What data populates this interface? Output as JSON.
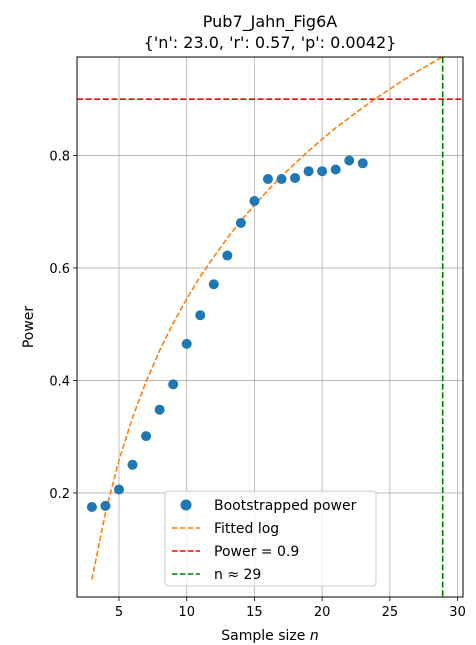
{
  "chart_data": {
    "type": "scatter",
    "title": "Pub7_Jahn_Fig6A",
    "subtitle": "{'n': 23.0, 'r': 0.57, 'p': 0.0042}",
    "xlabel": "Sample size",
    "xlabel_var": "n",
    "ylabel": "Power",
    "xlim": [
      1.9,
      30.4
    ],
    "ylim": [
      0.015,
      0.975
    ],
    "xticks": [
      5,
      10,
      15,
      20,
      25,
      30
    ],
    "yticks": [
      0.2,
      0.4,
      0.6,
      0.8
    ],
    "ytick_labels": [
      "0.2",
      "0.4",
      "0.6",
      "0.8"
    ],
    "grid": true,
    "legend_position": "lower-center",
    "series": [
      {
        "name": "Bootstrapped power",
        "kind": "scatter",
        "color": "#1f77b4",
        "x": [
          3,
          4,
          5,
          6,
          7,
          8,
          9,
          10,
          11,
          12,
          13,
          14,
          15,
          16,
          17,
          18,
          19,
          20,
          21,
          22,
          23
        ],
        "y": [
          0.175,
          0.177,
          0.206,
          0.25,
          0.301,
          0.348,
          0.393,
          0.465,
          0.516,
          0.571,
          0.622,
          0.68,
          0.719,
          0.758,
          0.758,
          0.76,
          0.772,
          0.772,
          0.775,
          0.791,
          0.786
        ]
      },
      {
        "name": "Fitted log",
        "kind": "curve",
        "color": "#ff7f0e",
        "x": [
          3,
          4,
          5,
          6,
          7,
          8,
          9,
          10,
          11,
          12,
          13,
          14,
          15,
          16,
          17,
          18,
          19,
          20,
          21,
          22,
          23,
          24,
          25,
          26,
          27,
          28,
          29
        ],
        "y": [
          0.046,
          0.165,
          0.258,
          0.334,
          0.398,
          0.453,
          0.502,
          0.545,
          0.585,
          0.62,
          0.653,
          0.684,
          0.712,
          0.738,
          0.763,
          0.786,
          0.808,
          0.829,
          0.849,
          0.867,
          0.885,
          0.902,
          0.918,
          0.934,
          0.949,
          0.963,
          0.977
        ]
      },
      {
        "name": "Power = 0.9",
        "kind": "hline",
        "color": "#ff0000",
        "y": 0.9
      },
      {
        "name": "n ≈ 29",
        "kind": "vline",
        "color": "#008000",
        "x": 28.9
      }
    ]
  }
}
